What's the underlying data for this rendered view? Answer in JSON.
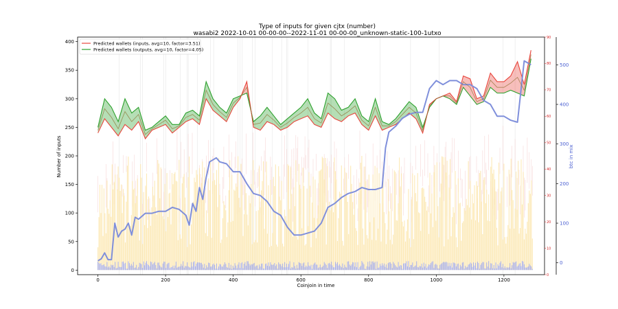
{
  "chart_data": {
    "type": "line",
    "title": "Type of inputs for given cjtx (number)",
    "subtitle": "wasabi2 2022-10-01 00-00-00--2022-11-01 00-00-00_unknown-static-100-1utxo",
    "xlabel": "Coinjoin in time",
    "ylabel": "Number of inputs",
    "y2label": "",
    "y3label": "btc in mix",
    "xlim": [
      -60,
      1320
    ],
    "ylim": [
      -8,
      408
    ],
    "y2lim": [
      0,
      90
    ],
    "y3lim": [
      -30,
      570
    ],
    "xticks": [
      0,
      200,
      400,
      600,
      800,
      1000,
      1200
    ],
    "yticks": [
      0,
      50,
      100,
      150,
      200,
      250,
      300,
      350,
      400
    ],
    "y2ticks": [
      0,
      10,
      20,
      30,
      40,
      50,
      60,
      70,
      80,
      90
    ],
    "y3ticks": [
      0,
      100,
      200,
      300,
      400,
      500
    ],
    "legend_position": "top-left",
    "series": [
      {
        "name": "Predicted wallets (inputs, avg=10, factor=3.51)",
        "color": "#e8453c",
        "axis": "y",
        "x": [
          0,
          20,
          40,
          60,
          80,
          100,
          120,
          140,
          160,
          180,
          200,
          220,
          240,
          260,
          280,
          300,
          320,
          340,
          360,
          380,
          400,
          420,
          440,
          460,
          480,
          500,
          520,
          540,
          560,
          580,
          600,
          620,
          640,
          660,
          680,
          700,
          720,
          740,
          760,
          780,
          800,
          820,
          840,
          860,
          880,
          900,
          920,
          940,
          960,
          980,
          1000,
          1020,
          1040,
          1060,
          1080,
          1100,
          1120,
          1140,
          1160,
          1180,
          1200,
          1220,
          1240,
          1260,
          1280
        ],
        "values": [
          240,
          265,
          250,
          235,
          255,
          245,
          260,
          230,
          245,
          250,
          255,
          240,
          250,
          260,
          265,
          255,
          300,
          280,
          270,
          260,
          285,
          300,
          330,
          250,
          245,
          260,
          255,
          245,
          250,
          260,
          265,
          270,
          255,
          250,
          275,
          265,
          260,
          270,
          275,
          255,
          245,
          270,
          245,
          250,
          255,
          265,
          275,
          265,
          240,
          290,
          300,
          305,
          310,
          295,
          340,
          335,
          300,
          305,
          345,
          330,
          330,
          340,
          365,
          325,
          385
        ]
      },
      {
        "name": "Predicted wallets (outputs, avg=10, factor=4.05)",
        "color": "#2ca02c",
        "axis": "y",
        "x": [
          0,
          20,
          40,
          60,
          80,
          100,
          120,
          140,
          160,
          180,
          200,
          220,
          240,
          260,
          280,
          300,
          320,
          340,
          360,
          380,
          400,
          420,
          440,
          460,
          480,
          500,
          520,
          540,
          560,
          580,
          600,
          620,
          640,
          660,
          680,
          700,
          720,
          740,
          760,
          780,
          800,
          820,
          840,
          860,
          880,
          900,
          920,
          940,
          960,
          980,
          1000,
          1020,
          1040,
          1060,
          1080,
          1100,
          1120,
          1140,
          1160,
          1180,
          1200,
          1220,
          1240,
          1260,
          1280
        ],
        "values": [
          250,
          300,
          285,
          260,
          300,
          275,
          285,
          245,
          250,
          260,
          270,
          255,
          255,
          275,
          280,
          270,
          330,
          300,
          285,
          275,
          300,
          305,
          310,
          260,
          270,
          285,
          270,
          255,
          265,
          275,
          285,
          300,
          275,
          265,
          310,
          300,
          280,
          285,
          300,
          270,
          260,
          300,
          260,
          255,
          265,
          280,
          295,
          285,
          250,
          285,
          300,
          305,
          300,
          290,
          320,
          305,
          290,
          295,
          320,
          310,
          310,
          315,
          310,
          305,
          370
        ]
      },
      {
        "name": "",
        "color": "#7f8fdb",
        "axis": "y3",
        "x": [
          0,
          10,
          20,
          30,
          40,
          50,
          60,
          70,
          80,
          90,
          100,
          110,
          120,
          140,
          160,
          180,
          200,
          220,
          240,
          260,
          270,
          280,
          290,
          300,
          310,
          320,
          330,
          340,
          350,
          360,
          380,
          400,
          420,
          440,
          460,
          480,
          500,
          520,
          540,
          560,
          570,
          580,
          600,
          620,
          640,
          660,
          680,
          700,
          720,
          740,
          760,
          780,
          800,
          820,
          840,
          850,
          860,
          880,
          900,
          920,
          940,
          960,
          980,
          1000,
          1020,
          1040,
          1060,
          1080,
          1100,
          1120,
          1140,
          1160,
          1180,
          1200,
          1220,
          1240,
          1260,
          1280
        ],
        "values": [
          5,
          10,
          25,
          8,
          8,
          100,
          65,
          80,
          85,
          100,
          70,
          115,
          110,
          125,
          125,
          130,
          130,
          140,
          135,
          120,
          95,
          150,
          130,
          190,
          160,
          215,
          255,
          260,
          265,
          255,
          250,
          230,
          230,
          200,
          175,
          170,
          155,
          130,
          120,
          90,
          80,
          70,
          70,
          75,
          80,
          100,
          140,
          150,
          165,
          175,
          180,
          190,
          185,
          185,
          190,
          290,
          330,
          345,
          365,
          375,
          380,
          380,
          440,
          460,
          450,
          460,
          460,
          450,
          450,
          440,
          410,
          400,
          370,
          370,
          360,
          355,
          510,
          500
        ]
      }
    ]
  }
}
